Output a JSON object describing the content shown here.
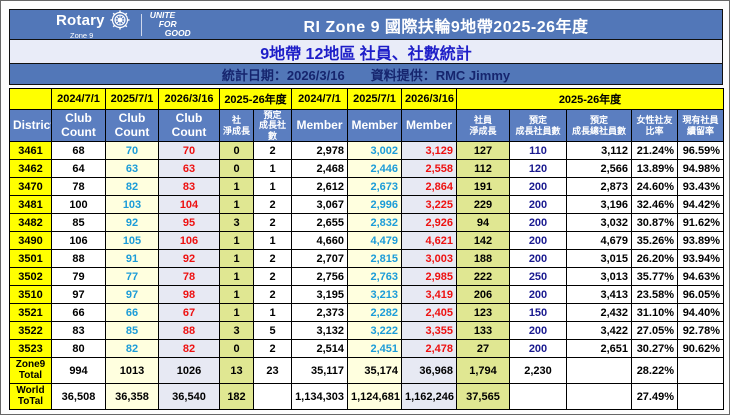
{
  "header": {
    "logo": {
      "brand": "Rotary",
      "zone": "Zone 9",
      "tagline_line1": "UNITE",
      "tagline_line2": "FOR",
      "tagline_line3": "GOOD"
    },
    "title": "RI Zone 9   國際扶輪9地帶2025-26年度",
    "subtitle": "9地帶 12地區 社員、社數統計",
    "stat_date": "統計日期：2026/3/16",
    "provider": "資料提供：RMC Jimmy"
  },
  "table": {
    "header_row1": {
      "c1": "2024/7/1",
      "c2": "2025/7/1",
      "c3": "2026/3/16",
      "c4": "2025-26年度",
      "c5": "2024/7/1",
      "c6": "2025/7/1",
      "c7": "2026/3/16",
      "c8": "2025-26年度"
    },
    "header_row2": [
      "District",
      "Club Count",
      "Club Count",
      "Club Count",
      "社\n淨成長",
      "預定\n成長社數",
      "Member",
      "Member",
      "Member",
      "社員\n淨成長",
      "預定\n成長社員數",
      "預定\n成長總社員數",
      "女性社友\n比率",
      "現有社員\n續留率"
    ],
    "rows": [
      {
        "district": "3461",
        "cells": [
          "68",
          "70",
          "70",
          "0",
          "2",
          "2,978",
          "3,002",
          "3,129",
          "127",
          "110",
          "3,112",
          "21.24%",
          "96.59%"
        ]
      },
      {
        "district": "3462",
        "cells": [
          "64",
          "63",
          "63",
          "0",
          "1",
          "2,468",
          "2,446",
          "2,558",
          "112",
          "120",
          "2,566",
          "13.89%",
          "94.98%"
        ]
      },
      {
        "district": "3470",
        "cells": [
          "78",
          "82",
          "83",
          "1",
          "1",
          "2,612",
          "2,673",
          "2,864",
          "191",
          "200",
          "2,873",
          "24.60%",
          "93.43%"
        ]
      },
      {
        "district": "3481",
        "cells": [
          "100",
          "103",
          "104",
          "1",
          "2",
          "3,067",
          "2,996",
          "3,225",
          "229",
          "200",
          "3,196",
          "32.46%",
          "94.42%"
        ]
      },
      {
        "district": "3482",
        "cells": [
          "85",
          "92",
          "95",
          "3",
          "2",
          "2,655",
          "2,832",
          "2,926",
          "94",
          "200",
          "3,032",
          "30.87%",
          "91.62%"
        ]
      },
      {
        "district": "3490",
        "cells": [
          "106",
          "105",
          "106",
          "1",
          "1",
          "4,660",
          "4,479",
          "4,621",
          "142",
          "200",
          "4,679",
          "35.26%",
          "93.89%"
        ]
      },
      {
        "district": "3501",
        "cells": [
          "88",
          "91",
          "92",
          "1",
          "2",
          "2,707",
          "2,815",
          "3,003",
          "188",
          "200",
          "3,015",
          "26.20%",
          "93.94%"
        ]
      },
      {
        "district": "3502",
        "cells": [
          "79",
          "77",
          "78",
          "1",
          "2",
          "2,756",
          "2,763",
          "2,985",
          "222",
          "250",
          "3,013",
          "35.77%",
          "94.63%"
        ]
      },
      {
        "district": "3510",
        "cells": [
          "97",
          "97",
          "98",
          "1",
          "2",
          "3,195",
          "3,213",
          "3,419",
          "206",
          "200",
          "3,413",
          "23.58%",
          "96.05%"
        ]
      },
      {
        "district": "3521",
        "cells": [
          "66",
          "66",
          "67",
          "1",
          "1",
          "2,373",
          "2,282",
          "2,405",
          "123",
          "150",
          "2,432",
          "31.10%",
          "94.40%"
        ]
      },
      {
        "district": "3522",
        "cells": [
          "83",
          "85",
          "88",
          "3",
          "5",
          "3,132",
          "3,222",
          "3,355",
          "133",
          "200",
          "3,422",
          "27.05%",
          "92.78%"
        ]
      },
      {
        "district": "3523",
        "cells": [
          "80",
          "82",
          "82",
          "0",
          "2",
          "2,514",
          "2,451",
          "2,478",
          "27",
          "200",
          "2,651",
          "30.27%",
          "90.62%"
        ]
      }
    ],
    "totals": [
      {
        "district": "Zone9\nTotal",
        "cells": [
          "994",
          "1013",
          "1026",
          "13",
          "23",
          "35,117",
          "35,174",
          "36,968",
          "1,794",
          "2,230",
          "",
          "28.22%",
          ""
        ]
      },
      {
        "district": "World\nToTal",
        "cells": [
          "36,508",
          "36,358",
          "36,540",
          "182",
          "",
          "1,134,303",
          "1,124,681",
          "1,162,246",
          "37,565",
          "",
          "",
          "27.49%",
          ""
        ]
      }
    ]
  },
  "colors": {
    "banner_blue": "#5277B8",
    "table_header_blue": "#5B7EC0",
    "subtitle_bg": "#E9ECF8",
    "subtitle_text": "#1E1EC8",
    "info_text": "#16256E",
    "highlight_yellow": "#FFFF00",
    "col_ivory": "#FFFFDF",
    "col_lavender": "#E7E9F3",
    "col_green": "#E0E792",
    "value_cyan": "#1C9CD8",
    "value_red": "#EE1111",
    "value_navy": "#1A1A90"
  }
}
